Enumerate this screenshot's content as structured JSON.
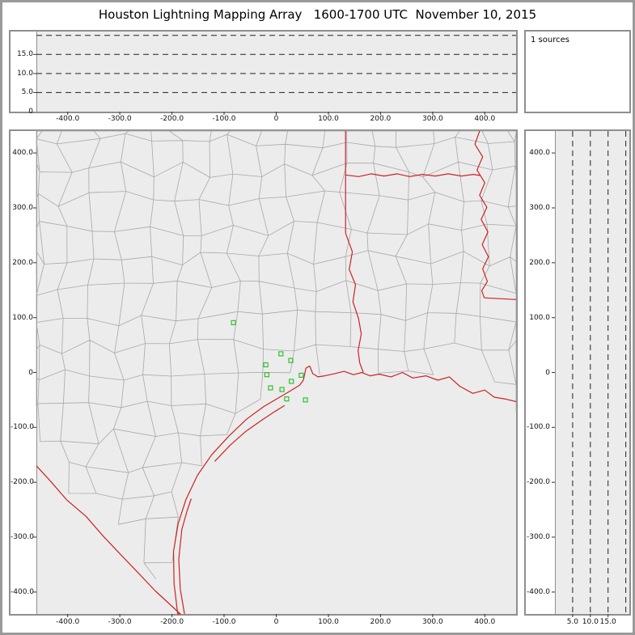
{
  "title": "Houston Lightning Mapping Array   1600-1700 UTC  November 10, 2015",
  "sources_panel": {
    "label": "1 sources"
  },
  "colors": {
    "boundary_red": "#cc2222",
    "county_gray": "#a8a8a8",
    "station_green": "#2fbf2f",
    "plot_bg": "#ececec",
    "frame_gray": "#8f8f8f",
    "dash_black": "#222222",
    "tick_black": "#333333"
  },
  "chart_data": {
    "type": "scatter",
    "title": "Houston Lightning Mapping Array 1600-1700 UTC November 10, 2015",
    "source_count": 1,
    "x_range": [
      -460,
      460
    ],
    "y_range": [
      -440,
      440
    ],
    "alt_range": [
      0,
      21
    ],
    "xy_ticks": [
      {
        "v": -400,
        "label": "-400.0"
      },
      {
        "v": -300,
        "label": "-300.0"
      },
      {
        "v": -200,
        "label": "-200.0"
      },
      {
        "v": -100,
        "label": "-100.0"
      },
      {
        "v": 0,
        "label": "0"
      },
      {
        "v": 100,
        "label": "100.0"
      },
      {
        "v": 200,
        "label": "200.0"
      },
      {
        "v": 300,
        "label": "300.0"
      },
      {
        "v": 400,
        "label": "400.0"
      }
    ],
    "alt_ticks": [
      {
        "v": 0,
        "label": "0"
      },
      {
        "v": 5,
        "label": "5.0"
      },
      {
        "v": 10,
        "label": "10.0"
      },
      {
        "v": 15,
        "label": "15.0"
      }
    ],
    "alt_gridlines": [
      5,
      10,
      15,
      20
    ],
    "stations_km": [
      [
        -82,
        91
      ],
      [
        -20,
        14
      ],
      [
        9,
        34
      ],
      [
        28,
        22
      ],
      [
        -18,
        -4
      ],
      [
        -11,
        -28
      ],
      [
        11,
        -31
      ],
      [
        29,
        -16
      ],
      [
        48,
        -5
      ],
      [
        20,
        -48
      ],
      [
        56,
        -50
      ]
    ],
    "boundaries_km": {
      "coastline": [
        [
          -187,
          -470
        ],
        [
          -189,
          -441
        ],
        [
          -196,
          -385
        ],
        [
          -197,
          -326
        ],
        [
          -188,
          -275
        ],
        [
          -173,
          -231
        ],
        [
          -151,
          -187
        ],
        [
          -124,
          -150
        ],
        [
          -91,
          -116
        ],
        [
          -57,
          -85
        ],
        [
          -24,
          -62
        ],
        [
          3,
          -47
        ],
        [
          21,
          -37
        ],
        [
          45,
          -23
        ],
        [
          52,
          -14
        ],
        [
          57,
          8
        ],
        [
          64,
          12
        ],
        [
          70,
          -2
        ],
        [
          80,
          -8
        ],
        [
          93,
          -6
        ],
        [
          112,
          -2
        ],
        [
          130,
          2
        ],
        [
          148,
          -4
        ],
        [
          164,
          0
        ],
        [
          180,
          -6
        ],
        [
          197,
          -3
        ],
        [
          220,
          -8
        ],
        [
          242,
          0
        ],
        [
          262,
          -10
        ],
        [
          287,
          -6
        ],
        [
          310,
          -14
        ],
        [
          332,
          -8
        ],
        [
          352,
          -25
        ],
        [
          377,
          -38
        ],
        [
          400,
          -32
        ],
        [
          418,
          -45
        ],
        [
          438,
          -48
        ],
        [
          462,
          -53
        ]
      ],
      "rio_grande": [
        [
          -460,
          -170
        ],
        [
          -433,
          -198
        ],
        [
          -402,
          -232
        ],
        [
          -365,
          -262
        ],
        [
          -332,
          -298
        ],
        [
          -300,
          -330
        ],
        [
          -268,
          -362
        ],
        [
          -232,
          -398
        ],
        [
          -200,
          -426
        ],
        [
          -184,
          -444
        ],
        [
          -187,
          -462
        ]
      ],
      "padre_island": [
        [
          -163,
          -230
        ],
        [
          -171,
          -252
        ],
        [
          -181,
          -286
        ],
        [
          -187,
          -340
        ],
        [
          -184,
          -395
        ],
        [
          -176,
          -444
        ]
      ],
      "matagorda_island": [
        [
          -118,
          -162
        ],
        [
          -88,
          -132
        ],
        [
          -58,
          -107
        ],
        [
          -28,
          -87
        ],
        [
          -4,
          -72
        ],
        [
          16,
          -60
        ]
      ],
      "tx_ar_border": [
        [
          133,
          440
        ],
        [
          133,
          254
        ]
      ],
      "sabine_river": [
        [
          133,
          254
        ],
        [
          146,
          220
        ],
        [
          140,
          188
        ],
        [
          152,
          160
        ],
        [
          147,
          129
        ],
        [
          158,
          98
        ],
        [
          163,
          70
        ],
        [
          157,
          40
        ],
        [
          160,
          18
        ],
        [
          167,
          0
        ]
      ],
      "ar_la_border": [
        [
          133,
          360
        ],
        [
          158,
          357
        ],
        [
          182,
          362
        ],
        [
          207,
          358
        ],
        [
          232,
          362
        ],
        [
          256,
          357
        ],
        [
          280,
          361
        ],
        [
          305,
          358
        ],
        [
          330,
          362
        ],
        [
          355,
          358
        ],
        [
          378,
          361
        ],
        [
          392,
          359
        ]
      ],
      "mississippi_river": [
        [
          390,
          440
        ],
        [
          381,
          416
        ],
        [
          396,
          393
        ],
        [
          385,
          369
        ],
        [
          400,
          346
        ],
        [
          390,
          323
        ],
        [
          404,
          301
        ],
        [
          393,
          279
        ],
        [
          406,
          256
        ],
        [
          395,
          233
        ],
        [
          407,
          211
        ],
        [
          396,
          189
        ],
        [
          405,
          166
        ],
        [
          394,
          149
        ],
        [
          399,
          136
        ]
      ],
      "la_ms_border": [
        [
          399,
          136
        ],
        [
          460,
          133
        ]
      ]
    },
    "county_grid": {
      "spacing": 54,
      "jitter": 30,
      "seed": 7
    }
  }
}
